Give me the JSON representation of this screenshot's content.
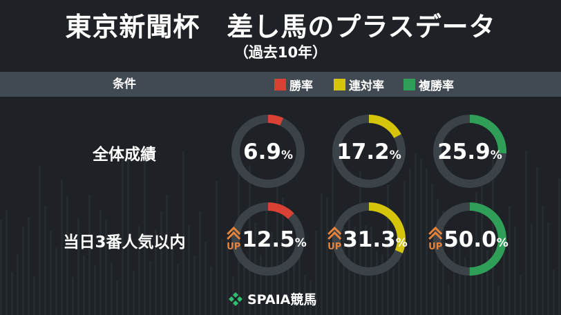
{
  "title": "東京新聞杯　差し馬のプラスデータ",
  "subtitle": "（過去10年）",
  "header": {
    "condition_label": "条件",
    "legend": [
      {
        "label": "勝率",
        "color": "#d94135"
      },
      {
        "label": "連対率",
        "color": "#d6c40a"
      },
      {
        "label": "複勝率",
        "color": "#2f9e57"
      }
    ]
  },
  "colors": {
    "background": "#1e2226",
    "band": "#414a52",
    "track": "#3b4349",
    "up": "#e8833a"
  },
  "up_text": "UP",
  "percent_sign": "%",
  "chart_data": {
    "type": "donut",
    "title": "東京新聞杯　差し馬のプラスデータ",
    "subtitle": "（過去10年）",
    "metrics": [
      "勝率",
      "連対率",
      "複勝率"
    ],
    "rows": [
      {
        "label": "全体成績",
        "up": false,
        "values": [
          6.9,
          17.2,
          25.9
        ],
        "value_text": [
          "6.9",
          "17.2",
          "25.9"
        ]
      },
      {
        "label": "当日3番人気以内",
        "up": true,
        "values": [
          12.5,
          31.3,
          50.0
        ],
        "value_text": [
          "12.5",
          "31.3",
          "50.0"
        ]
      }
    ],
    "max": 100,
    "legend_position": "top-right"
  },
  "logo": {
    "text": "SPAIA競馬"
  }
}
